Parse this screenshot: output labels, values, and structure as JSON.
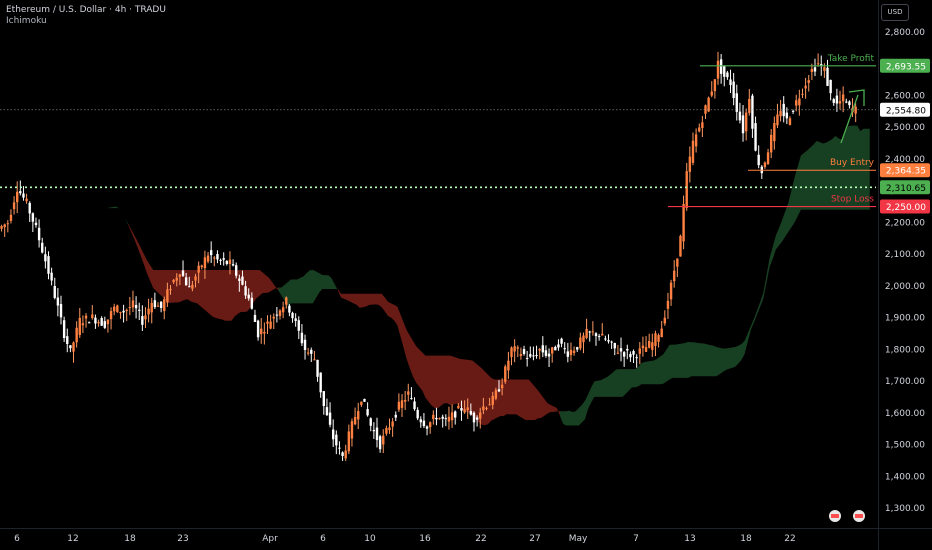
{
  "header": {
    "symbol": "Ethereum / U.S. Dollar · 4h · TRADU",
    "indicator": "Ichimoku",
    "currency": "USD"
  },
  "chart_data": {
    "type": "candlestick",
    "symbol": "Ethereum / U.S. Dollar",
    "interval": "4h",
    "ylim": [
      1250,
      2870
    ],
    "y_ticks": [
      1300,
      1400,
      1500,
      1600,
      1700,
      1800,
      1900,
      2000,
      2100,
      2200,
      2300,
      2400,
      2500,
      2600,
      2700,
      2800
    ],
    "y_tick_labels": [
      "1,300.00",
      "1,400.00",
      "1,500.00",
      "1,600.00",
      "1,700.00",
      "1,800.00",
      "1,900.00",
      "2,000.00",
      "2,100.00",
      "2,200.00",
      "2,300.00",
      "2,400.00",
      "2,500.00",
      "2,600.00",
      "2,700.00",
      "2,800.00"
    ],
    "x_tick_labels": [
      "6",
      "12",
      "18",
      "23",
      "Apr",
      "6",
      "10",
      "16",
      "22",
      "27",
      "May",
      "7",
      "13",
      "18",
      "22"
    ],
    "price_path": [
      [
        0,
        2180
      ],
      [
        3,
        2200
      ],
      [
        6,
        2310
      ],
      [
        9,
        2260
      ],
      [
        12,
        2180
      ],
      [
        15,
        2080
      ],
      [
        18,
        1970
      ],
      [
        21,
        1850
      ],
      [
        23,
        1790
      ],
      [
        26,
        1890
      ],
      [
        30,
        1900
      ],
      [
        34,
        1880
      ],
      [
        37,
        1930
      ],
      [
        40,
        1920
      ],
      [
        43,
        1940
      ],
      [
        46,
        1890
      ],
      [
        49,
        1950
      ],
      [
        52,
        1930
      ],
      [
        55,
        2000
      ],
      [
        58,
        2050
      ],
      [
        61,
        1990
      ],
      [
        64,
        2050
      ],
      [
        67,
        2100
      ],
      [
        70,
        2080
      ],
      [
        74,
        2070
      ],
      [
        77,
        2020
      ],
      [
        80,
        1960
      ],
      [
        83,
        1850
      ],
      [
        86,
        1880
      ],
      [
        89,
        1920
      ],
      [
        92,
        1950
      ],
      [
        95,
        1880
      ],
      [
        98,
        1800
      ],
      [
        101,
        1770
      ],
      [
        104,
        1620
      ],
      [
        107,
        1520
      ],
      [
        110,
        1460
      ],
      [
        113,
        1560
      ],
      [
        116,
        1650
      ],
      [
        119,
        1560
      ],
      [
        122,
        1500
      ],
      [
        125,
        1560
      ],
      [
        128,
        1620
      ],
      [
        131,
        1660
      ],
      [
        134,
        1590
      ],
      [
        137,
        1560
      ],
      [
        140,
        1590
      ],
      [
        143,
        1570
      ],
      [
        146,
        1600
      ],
      [
        149,
        1620
      ],
      [
        152,
        1580
      ],
      [
        155,
        1620
      ],
      [
        158,
        1640
      ],
      [
        161,
        1700
      ],
      [
        164,
        1800
      ],
      [
        167,
        1790
      ],
      [
        170,
        1770
      ],
      [
        173,
        1800
      ],
      [
        176,
        1780
      ],
      [
        179,
        1820
      ],
      [
        182,
        1790
      ],
      [
        185,
        1810
      ],
      [
        188,
        1850
      ],
      [
        191,
        1850
      ],
      [
        194,
        1830
      ],
      [
        197,
        1800
      ],
      [
        200,
        1790
      ],
      [
        203,
        1780
      ],
      [
        206,
        1800
      ],
      [
        209,
        1820
      ],
      [
        212,
        1870
      ],
      [
        215,
        2000
      ],
      [
        218,
        2150
      ],
      [
        220,
        2350
      ],
      [
        222,
        2450
      ],
      [
        224,
        2500
      ],
      [
        226,
        2560
      ],
      [
        228,
        2620
      ],
      [
        230,
        2700
      ],
      [
        232,
        2660
      ],
      [
        234,
        2640
      ],
      [
        236,
        2560
      ],
      [
        238,
        2490
      ],
      [
        240,
        2600
      ],
      [
        242,
        2420
      ],
      [
        244,
        2360
      ],
      [
        246,
        2430
      ],
      [
        248,
        2500
      ],
      [
        250,
        2560
      ],
      [
        252,
        2520
      ],
      [
        254,
        2560
      ],
      [
        256,
        2600
      ],
      [
        258,
        2640
      ],
      [
        260,
        2680
      ],
      [
        262,
        2700
      ],
      [
        264,
        2680
      ],
      [
        266,
        2600
      ],
      [
        268,
        2570
      ],
      [
        270,
        2590
      ],
      [
        272,
        2560
      ],
      [
        274,
        2555
      ]
    ],
    "last_price": 2554.8,
    "annotations": [
      {
        "label": "Take Profit",
        "price": 2693.55,
        "price_label": "2,693.55",
        "color": "#4caf50"
      },
      {
        "label": "Buy Entry",
        "price": 2364.35,
        "price_label": "2,364.35",
        "color": "#ff7f3f"
      },
      {
        "label": "Stop Loss",
        "price": 2250.0,
        "price_label": "2,250.00",
        "color": "#f23645"
      }
    ],
    "markers": [
      {
        "price": 2554.8,
        "price_label": "2,554.80",
        "color": "#ffffff",
        "text_color": "#000000"
      },
      {
        "price": 2310.65,
        "price_label": "2,310.65",
        "color": "#4caf50",
        "text_color": "#000000"
      }
    ],
    "cloud_colors": {
      "bearish": "#7a1f18",
      "bullish": "#1b4a27"
    },
    "candle_color": "#ff8040"
  }
}
